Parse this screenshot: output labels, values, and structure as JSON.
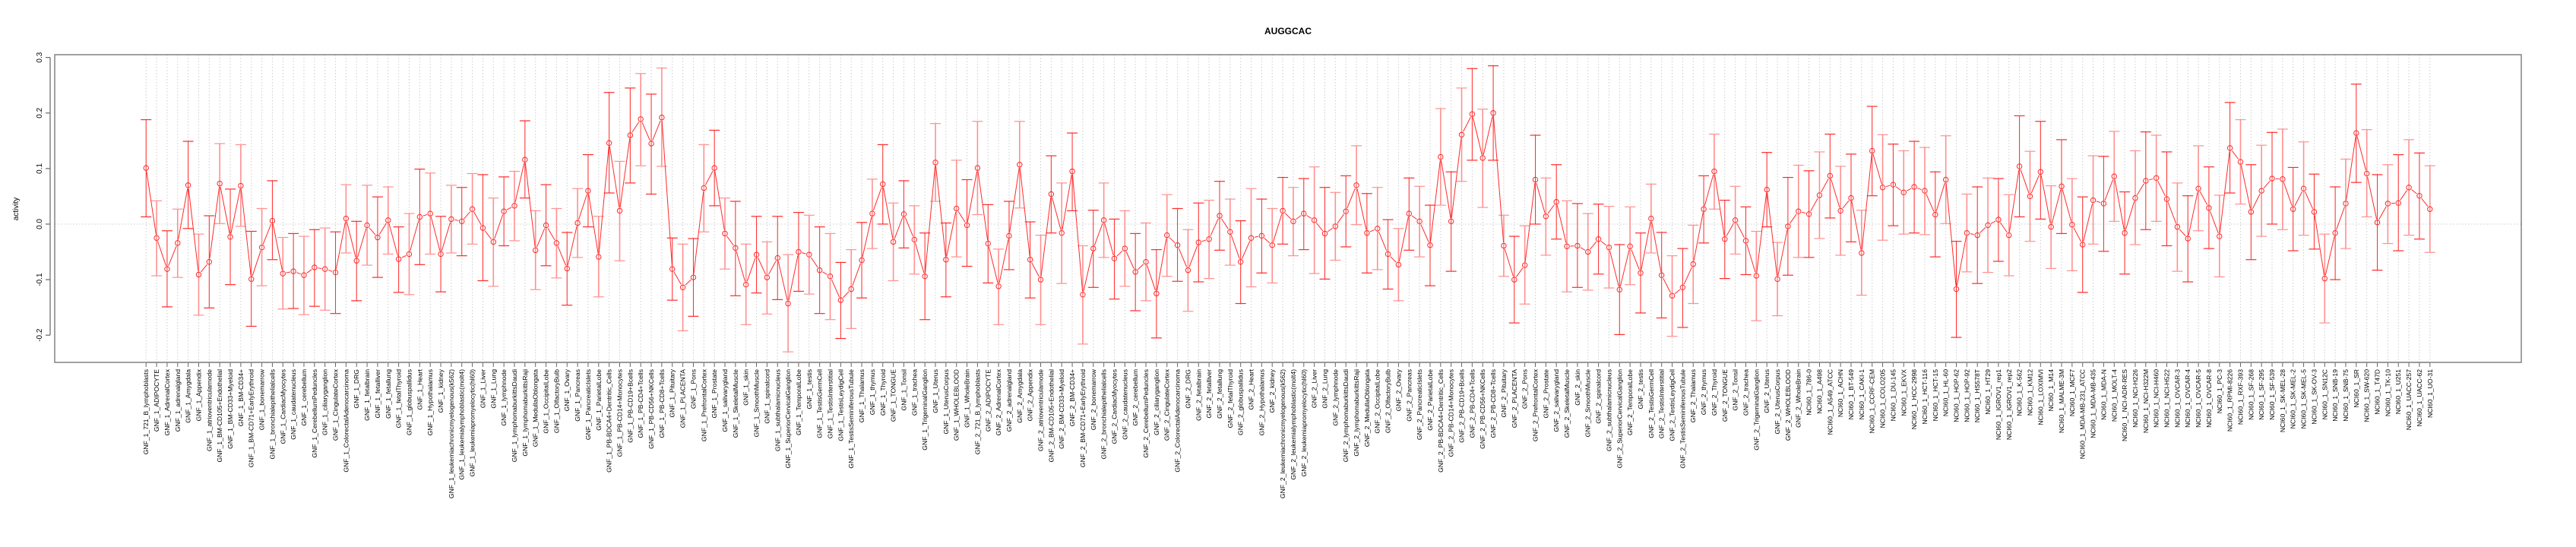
{
  "chart_data": {
    "type": "line",
    "title": "AUGGCAC",
    "xlabel": "",
    "ylabel": "activity",
    "ylim": [
      -0.249,
      0.305
    ],
    "yticks": [
      -0.2,
      -0.1,
      0.0,
      0.1,
      0.2,
      0.3
    ],
    "ytick_labels": [
      "-0.2",
      "-0.1",
      "0.0",
      "0.1",
      "0.2",
      "0.3"
    ],
    "grid": "vertical dotted at each category; dotted zero line",
    "colors": {
      "series": "#ff2a2a",
      "error_bar_alt": "#ff9090",
      "grid": "#cccccc",
      "axis": "#808080"
    },
    "categories": [
      "GNF_1_721_B_lymphoblasts",
      "GNF_1_ADIPOCYTE",
      "GNF_1_AdrenalCortex",
      "GNF_1_adrenalgland",
      "GNF_1_Amygdala",
      "GNF_1_Appendix",
      "GNF_1_atrioventricularnode",
      "GNF_1_BM-CD105+Endothelial",
      "GNF_1_BM-CD33+Myeloid",
      "GNF_1_BM-CD34+",
      "GNF_1_BM-CD71+EarlyErythroid",
      "GNF_1_bonemarrow",
      "GNF_1_bronchialepithelialcells",
      "GNF_1_CardiacMyocytes",
      "GNF_1_caudatenucleus",
      "GNF_1_cerebellum",
      "GNF_1_CerebellumPeduncles",
      "GNF_1_ciliaryganglion",
      "GNF_1_CingulateCortex",
      "GNF_1_ColorectalAdenocarcinoma",
      "GNF_1_DRG",
      "GNF_1_fetalbrain",
      "GNF_1_fetalliver",
      "GNF_1_fetallung",
      "GNF_1_fetalThyroid",
      "GNF_1_globuspallidus",
      "GNF_1_Heart",
      "GNF_1_Hypothalamus",
      "GNF_1_kidney",
      "GNF_1_leukemiachronicmyelogenous(k562)",
      "GNF_1_leukemialymphoblastic(molt4)",
      "GNF_1_leukemiapromyelocytic(hl60)",
      "GNF_1_Liver",
      "GNF_1_Lung",
      "GNF_1_lymphnode",
      "GNF_1_lymphomaburkittsDaudi",
      "GNF_1_lymphomaburkittsRaji",
      "GNF_1_MedullaOblongata",
      "GNF_1_OccipitalLobe",
      "GNF_1_OlfactoryBulb",
      "GNF_1_Ovary",
      "GNF_1_Pancreas",
      "GNF_1_PancreaticIslets",
      "GNF_1_ParietalLobe",
      "GNF_1_PB-BDCA4+Dentritic_Cells",
      "GNF_1_PB-CD14+Monocytes",
      "GNF_1_PB-CD19+Bcells",
      "GNF_1_PB-CD4+Tcells",
      "GNF_1_PB-CD56+NKCells",
      "GNF_1_PB-CD8+Tcells",
      "GNF_1_Pituitary",
      "GNF_1_PLACENTA",
      "GNF_1_Pons",
      "GNF_1_PrefrontalCortex",
      "GNF_1_Prostate",
      "GNF_1_salivarygland",
      "GNF_1_SkeletalMuscle",
      "GNF_1_skin",
      "GNF_1_SmoothMuscle",
      "GNF_1_spinalcord",
      "GNF_1_subthalamicnucleus",
      "GNF_1_SuperiorCervicalGanglion",
      "GNF_1_TemporalLobe",
      "GNF_1_testis",
      "GNF_1_TestisGermCell",
      "GNF_1_TestisInterstitial",
      "GNF_1_TestisLeydigCell",
      "GNF_1_TestisSeminiferousTubule",
      "GNF_1_Thalamus",
      "GNF_1_thymus",
      "GNF_1_Thyroid",
      "GNF_1_TONGUE",
      "GNF_1_Tonsil",
      "GNF_1_trachea",
      "GNF_1_TrigeminalGanglion",
      "GNF_1_Uterus",
      "GNF_1_UterusCorpus",
      "GNF_1_WHOLEBLOOD",
      "GNF_1_WholeBrain",
      "GNF_2_721_B_lymphoblasts",
      "GNF_2_ADIPOCYTE",
      "GNF_2_AdrenalCortex",
      "GNF_2_adrenalgland",
      "GNF_2_Amygdala",
      "GNF_2_Appendix",
      "GNF_2_atrioventricularnode",
      "GNF_2_BM-CD105+Endothelial",
      "GNF_2_BM-CD33+Myeloid",
      "GNF_2_BM-CD34+",
      "GNF_2_BM-CD71+EarlyErythroid",
      "GNF_2_bonemarrow",
      "GNF_2_bronchialepithelialcells",
      "GNF_2_CardiacMyocytes",
      "GNF_2_caudatenucleus",
      "GNF_2_cerebellum",
      "GNF_2_CerebellumPeduncles",
      "GNF_2_ciliaryganglion",
      "GNF_2_CingulateCortex",
      "GNF_2_ColorectalAdenocarcinoma",
      "GNF_2_DRG",
      "GNF_2_fetalbrain",
      "GNF_2_fetalliver",
      "GNF_2_fetallung",
      "GNF_2_fetalThyroid",
      "GNF_2_globuspallidus",
      "GNF_2_Heart",
      "GNF_2_Hypothalamus",
      "GNF_2_kidney",
      "GNF_2_leukemiachronicmyelogenous(k562)",
      "GNF_2_leukemialymphoblastic(molt4)",
      "GNF_2_leukemiapromyelocytic(hl60)",
      "GNF_2_Liver",
      "GNF_2_Lung",
      "GNF_2_lymphnode",
      "GNF_2_lymphomaburkittsDaudi",
      "GNF_2_lymphomaburkittsRaji",
      "GNF_2_MedullaOblongata",
      "GNF_2_OccipitalLobe",
      "GNF_2_OlfactoryBulb",
      "GNF_2_Ovary",
      "GNF_2_Pancreas",
      "GNF_2_PancreaticIslets",
      "GNF_2_ParietalLobe",
      "GNF_2_PB-BDCA4+Dentritic_Cells",
      "GNF_2_PB-CD14+Monocytes",
      "GNF_2_PB-CD19+Bcells",
      "GNF_2_PB-CD4+Tcells",
      "GNF_2_PB-CD56+NKCells",
      "GNF_2_PB-CD8+Tcells",
      "GNF_2_Pituitary",
      "GNF_2_PLACENTA",
      "GNF_2_Pons",
      "GNF_2_PrefrontalCortex",
      "GNF_2_Prostate",
      "GNF_2_salivarygland",
      "GNF_2_SkeletalMuscle",
      "GNF_2_skin",
      "GNF_2_SmoothMuscle",
      "GNF_2_spinalcord",
      "GNF_2_subthalamicnucleus",
      "GNF_2_SuperiorCervicalGanglion",
      "GNF_2_TemporalLobe",
      "GNF_2_testis",
      "GNF_2_TestisGermCell",
      "GNF_2_TestisInterstitial",
      "GNF_2_TestisLeydigCell",
      "GNF_2_TestisSeminiferousTubule",
      "GNF_2_Thalamus",
      "GNF_2_thymus",
      "GNF_2_Thyroid",
      "GNF_2_TONGUE",
      "GNF_2_Tonsil",
      "GNF_2_trachea",
      "GNF_2_TrigeminalGanglion",
      "GNF_2_Uterus",
      "GNF_2_UterusCorpus",
      "GNF_2_WHOLEBLOOD",
      "GNF_2_WholeBrain",
      "NCI60_1_786-0",
      "NCI60_1_A498",
      "NCI60_1_A549_ATCC",
      "NCI60_1_ACHN",
      "NCI60_1_BT-549",
      "NCI60_1_CAKI-1",
      "NCI60_1_CCRF-CEM",
      "NCI60_1_COLO205",
      "NCI60_1_DU-145",
      "NCI60_1_EKVX",
      "NCI60_1_HCC-2998",
      "NCI60_1_HCT-116",
      "NCI60_1_HCT-15",
      "NCI60_1_HL-60",
      "NCI60_1_HOP-62",
      "NCI60_1_HOP-92",
      "NCI60_1_HS578T",
      "NCI60_1_HT29",
      "NCI60_1_IGROV1_rep1",
      "NCI60_1_IGROV1_rep2",
      "NCI60_1_K-562",
      "NCI60_1_KM12",
      "NCI60_1_LOXIMVI",
      "NCI60_1_M14",
      "NCI60_1_MALME-3M",
      "NCI60_1_MCF7",
      "NCI60_1_MDA-MB-231_ATCC",
      "NCI60_1_MDA-MB-435",
      "NCI60_1_MDA-N",
      "NCI60_1_MOLT-4",
      "NCI60_1_NCI-ADR-RES",
      "NCI60_1_NCI-H226",
      "NCI60_1_NCI-H322M",
      "NCI60_1_NCI-H460",
      "NCI60_1_NCI-H522",
      "NCI60_1_OVCAR-3",
      "NCI60_1_OVCAR-4",
      "NCI60_1_OVCAR-5",
      "NCI60_1_OVCAR-8",
      "NCI60_1_PC-3",
      "NCI60_1_RPMI-8226",
      "NCI60_1_RXF-393",
      "NCI60_1_SF-268",
      "NCI60_1_SF-295",
      "NCI60_1_SF-539",
      "NCI60_1_SK-MEL-28",
      "NCI60_1_SK-MEL-2",
      "NCI60_1_SK-MEL-5",
      "NCI60_1_SK-OV-3",
      "NCI60_1_SN12C",
      "NCI60_1_SNB-19",
      "NCI60_1_SNB-75",
      "NCI60_1_SR",
      "NCI60_1_SW-620",
      "NCI60_1_T47D",
      "NCI60_1_TK-10",
      "NCI60_1_U251",
      "NCI60_1_UACC-257",
      "NCI60_1_UACC-62",
      "NCI60_1_UO-31"
    ],
    "series": [
      {
        "name": "activity",
        "values": [
          0.101,
          -0.025,
          -0.081,
          -0.034,
          0.07,
          -0.091,
          -0.068,
          0.073,
          -0.023,
          0.069,
          -0.099,
          -0.042,
          0.006,
          -0.089,
          -0.085,
          -0.092,
          -0.078,
          -0.081,
          -0.087,
          0.01,
          -0.066,
          -0.002,
          -0.024,
          0.007,
          -0.063,
          -0.054,
          0.013,
          0.019,
          -0.054,
          0.009,
          0.005,
          0.027,
          -0.007,
          -0.032,
          0.023,
          0.033,
          0.116,
          -0.047,
          -0.002,
          -0.034,
          -0.08,
          0.002,
          0.06,
          -0.059,
          0.146,
          0.024,
          0.16,
          0.189,
          0.145,
          0.192,
          -0.081,
          -0.114,
          -0.096,
          0.065,
          0.101,
          -0.017,
          -0.043,
          -0.109,
          -0.055,
          -0.096,
          -0.061,
          -0.143,
          -0.05,
          -0.055,
          -0.083,
          -0.094,
          -0.137,
          -0.117,
          -0.065,
          0.019,
          0.072,
          -0.032,
          0.018,
          -0.028,
          -0.094,
          0.111,
          -0.064,
          0.028,
          -0.002,
          0.101,
          -0.035,
          -0.112,
          -0.021,
          0.107,
          -0.064,
          -0.1,
          0.054,
          -0.016,
          0.095,
          -0.127,
          -0.044,
          0.007,
          -0.062,
          -0.044,
          -0.086,
          -0.068,
          -0.125,
          -0.02,
          -0.038,
          -0.083,
          -0.033,
          -0.027,
          0.015,
          -0.014,
          -0.068,
          -0.025,
          -0.021,
          -0.038,
          0.024,
          0.005,
          0.019,
          0.007,
          -0.017,
          -0.004,
          0.023,
          0.07,
          -0.016,
          -0.008,
          -0.054,
          -0.073,
          0.019,
          0.005,
          -0.038,
          0.121,
          0.005,
          0.161,
          0.198,
          0.119,
          0.2,
          -0.039,
          -0.1,
          -0.074,
          0.08,
          0.014,
          0.04,
          -0.04,
          -0.039,
          -0.05,
          -0.027,
          -0.042,
          -0.118,
          -0.04,
          -0.088,
          0.01,
          -0.092,
          -0.129,
          -0.114,
          -0.072,
          0.027,
          0.095,
          -0.027,
          0.007,
          -0.03,
          -0.093,
          0.062,
          -0.099,
          -0.004,
          0.023,
          0.018,
          0.052,
          0.087,
          0.024,
          0.047,
          -0.052,
          0.132,
          0.066,
          0.071,
          0.057,
          0.067,
          0.06,
          0.017,
          0.08,
          -0.117,
          -0.016,
          -0.02,
          -0.002,
          0.008,
          -0.02,
          0.104,
          0.05,
          0.094,
          -0.005,
          0.068,
          -0.001,
          -0.037,
          0.043,
          0.037,
          0.086,
          -0.016,
          0.047,
          0.078,
          0.083,
          0.045,
          -0.005,
          -0.026,
          0.064,
          0.029,
          -0.022,
          0.137,
          0.112,
          0.022,
          0.06,
          0.082,
          0.081,
          0.027,
          0.064,
          0.022,
          -0.098,
          -0.016,
          0.037,
          0.164,
          0.091,
          0.003,
          0.037,
          0.038,
          0.066,
          0.051,
          0.027
        ],
        "upper": [
          0.188,
          0.042,
          -0.012,
          0.027,
          0.149,
          -0.018,
          0.015,
          0.145,
          0.063,
          0.143,
          -0.013,
          0.028,
          0.078,
          -0.024,
          -0.017,
          -0.022,
          -0.01,
          -0.007,
          -0.014,
          0.071,
          0.005,
          0.07,
          0.049,
          0.067,
          -0.005,
          0.019,
          0.099,
          0.092,
          0.014,
          0.07,
          0.066,
          0.091,
          0.089,
          0.047,
          0.085,
          0.095,
          0.186,
          0.024,
          0.071,
          0.028,
          -0.015,
          0.064,
          0.125,
          0.014,
          0.237,
          0.113,
          0.245,
          0.271,
          0.234,
          0.281,
          -0.025,
          -0.036,
          -0.026,
          0.143,
          0.169,
          0.047,
          0.041,
          -0.036,
          0.014,
          -0.032,
          0.014,
          -0.055,
          0.021,
          0.016,
          -0.005,
          -0.017,
          -0.069,
          -0.046,
          0.003,
          0.081,
          0.143,
          0.038,
          0.078,
          0.033,
          -0.016,
          0.181,
          0.002,
          0.115,
          0.08,
          0.185,
          0.035,
          -0.045,
          0.041,
          0.185,
          0.004,
          -0.02,
          0.123,
          0.074,
          0.164,
          -0.039,
          0.025,
          0.074,
          0.009,
          0.024,
          -0.017,
          0.002,
          -0.046,
          0.053,
          0.028,
          -0.01,
          0.038,
          0.043,
          0.077,
          0.045,
          0.006,
          0.064,
          0.045,
          0.028,
          0.084,
          0.066,
          0.082,
          0.103,
          0.066,
          0.057,
          0.087,
          0.141,
          0.055,
          0.066,
          0.008,
          -0.008,
          0.083,
          0.068,
          0.034,
          0.208,
          0.094,
          0.245,
          0.28,
          0.207,
          0.285,
          0.016,
          -0.022,
          -0.003,
          0.16,
          0.083,
          0.107,
          0.042,
          0.037,
          0.019,
          0.036,
          0.032,
          -0.037,
          0.031,
          -0.016,
          0.072,
          -0.015,
          -0.057,
          -0.044,
          -0.002,
          0.087,
          0.162,
          0.043,
          0.068,
          0.031,
          -0.013,
          0.129,
          -0.033,
          0.084,
          0.106,
          0.096,
          0.13,
          0.162,
          0.104,
          0.126,
          0.025,
          0.212,
          0.161,
          0.144,
          0.132,
          0.149,
          0.138,
          0.094,
          0.159,
          -0.031,
          0.054,
          0.067,
          0.083,
          0.082,
          0.053,
          0.195,
          0.131,
          0.185,
          0.069,
          0.152,
          0.082,
          0.049,
          0.123,
          0.122,
          0.167,
          0.058,
          0.132,
          0.166,
          0.16,
          0.13,
          0.074,
          0.051,
          0.141,
          0.103,
          0.052,
          0.219,
          0.188,
          0.107,
          0.142,
          0.165,
          0.171,
          0.102,
          0.148,
          0.09,
          -0.018,
          0.067,
          0.117,
          0.252,
          0.17,
          0.089,
          0.107,
          0.125,
          0.152,
          0.128,
          0.105
        ],
        "lower": [
          0.013,
          -0.093,
          -0.149,
          -0.096,
          -0.008,
          -0.164,
          -0.151,
          0.001,
          -0.109,
          -0.004,
          -0.184,
          -0.111,
          -0.064,
          -0.153,
          -0.152,
          -0.163,
          -0.148,
          -0.155,
          -0.161,
          -0.052,
          -0.138,
          -0.074,
          -0.096,
          -0.054,
          -0.123,
          -0.127,
          -0.073,
          -0.054,
          -0.122,
          -0.052,
          -0.057,
          -0.036,
          -0.102,
          -0.112,
          -0.039,
          -0.03,
          0.047,
          -0.118,
          -0.075,
          -0.097,
          -0.146,
          -0.06,
          -0.005,
          -0.131,
          0.056,
          -0.066,
          0.074,
          0.105,
          0.054,
          0.104,
          -0.137,
          -0.192,
          -0.166,
          -0.014,
          0.033,
          -0.081,
          -0.129,
          -0.181,
          -0.124,
          -0.162,
          -0.136,
          -0.23,
          -0.121,
          -0.126,
          -0.161,
          -0.172,
          -0.206,
          -0.188,
          -0.133,
          -0.044,
          0.0,
          -0.102,
          -0.043,
          -0.09,
          -0.172,
          0.041,
          -0.131,
          -0.059,
          -0.076,
          0.017,
          -0.106,
          -0.181,
          -0.082,
          0.029,
          -0.133,
          -0.181,
          -0.016,
          -0.107,
          0.024,
          -0.216,
          -0.114,
          -0.06,
          -0.135,
          -0.112,
          -0.156,
          -0.138,
          -0.205,
          -0.094,
          -0.103,
          -0.157,
          -0.104,
          -0.098,
          -0.047,
          -0.074,
          -0.143,
          -0.113,
          -0.088,
          -0.106,
          -0.036,
          -0.057,
          -0.046,
          -0.089,
          -0.099,
          -0.065,
          -0.041,
          -0.001,
          -0.088,
          -0.082,
          -0.117,
          -0.138,
          -0.047,
          -0.059,
          -0.111,
          0.034,
          -0.085,
          0.077,
          0.115,
          0.03,
          0.115,
          -0.094,
          -0.178,
          -0.144,
          0.0,
          -0.056,
          -0.027,
          -0.122,
          -0.114,
          -0.119,
          -0.09,
          -0.115,
          -0.199,
          -0.109,
          -0.16,
          -0.052,
          -0.169,
          -0.202,
          -0.186,
          -0.143,
          -0.034,
          0.027,
          -0.098,
          -0.054,
          -0.091,
          -0.174,
          -0.005,
          -0.165,
          -0.092,
          -0.06,
          -0.06,
          -0.026,
          0.011,
          -0.056,
          -0.032,
          -0.128,
          0.051,
          -0.029,
          -0.003,
          -0.018,
          -0.016,
          -0.019,
          -0.059,
          0.001,
          -0.204,
          -0.086,
          -0.107,
          -0.087,
          -0.067,
          -0.093,
          0.013,
          -0.031,
          0.009,
          -0.08,
          -0.017,
          -0.084,
          -0.123,
          -0.036,
          -0.049,
          0.005,
          -0.09,
          -0.037,
          -0.01,
          0.005,
          -0.039,
          -0.085,
          -0.104,
          -0.012,
          -0.044,
          -0.095,
          0.056,
          0.036,
          -0.064,
          -0.022,
          0.0,
          -0.01,
          -0.048,
          -0.02,
          -0.045,
          -0.178,
          -0.1,
          -0.044,
          0.075,
          0.013,
          -0.083,
          -0.035,
          -0.048,
          -0.02,
          -0.027,
          -0.051
        ]
      }
    ]
  }
}
